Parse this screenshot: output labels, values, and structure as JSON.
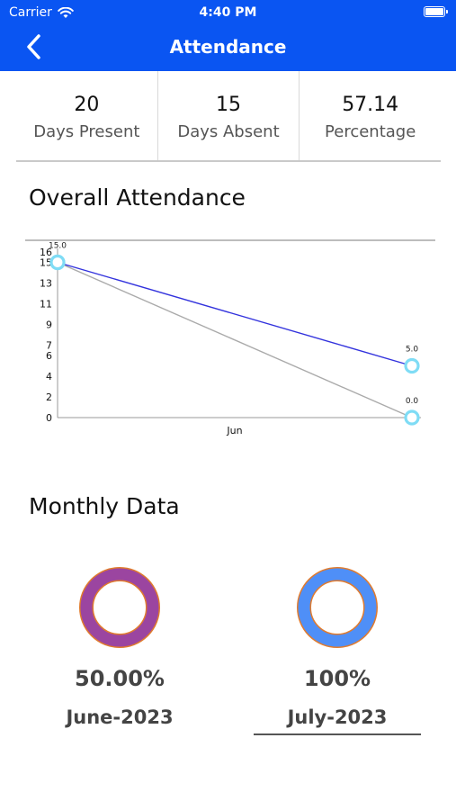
{
  "status_bar": {
    "carrier": "Carrier",
    "time": "4:40 PM"
  },
  "header": {
    "title": "Attendance"
  },
  "stats": [
    {
      "value": "20",
      "label": "Days Present"
    },
    {
      "value": "15",
      "label": "Days Absent"
    },
    {
      "value": "57.14",
      "label": "Percentage"
    }
  ],
  "overall": {
    "title": "Overall Attendance"
  },
  "chart_data": {
    "type": "line",
    "x": [
      "",
      "Jun"
    ],
    "xlabel": "",
    "ylabel": "",
    "ylim": [
      0,
      16
    ],
    "yticks": [
      "0",
      "2",
      "4",
      "6",
      "7",
      "9",
      "11",
      "13",
      "15",
      "16"
    ],
    "series": [
      {
        "color": "#3333dd",
        "values": [
          15.0,
          5.0
        ],
        "labels": [
          "15.0",
          "5.0"
        ]
      },
      {
        "color": "#aaaaaa",
        "values": [
          15.0,
          0.0
        ],
        "labels": [
          "",
          "0.0"
        ]
      }
    ],
    "marker_color": "#7fdcf5"
  },
  "monthly": {
    "title": "Monthly Data",
    "items": [
      {
        "percent": "50.00%",
        "month": "June-2023",
        "color": "#9b45a0",
        "selected": false
      },
      {
        "percent": "100%",
        "month": "July-2023",
        "color": "#4f8ff7",
        "selected": true
      }
    ]
  }
}
